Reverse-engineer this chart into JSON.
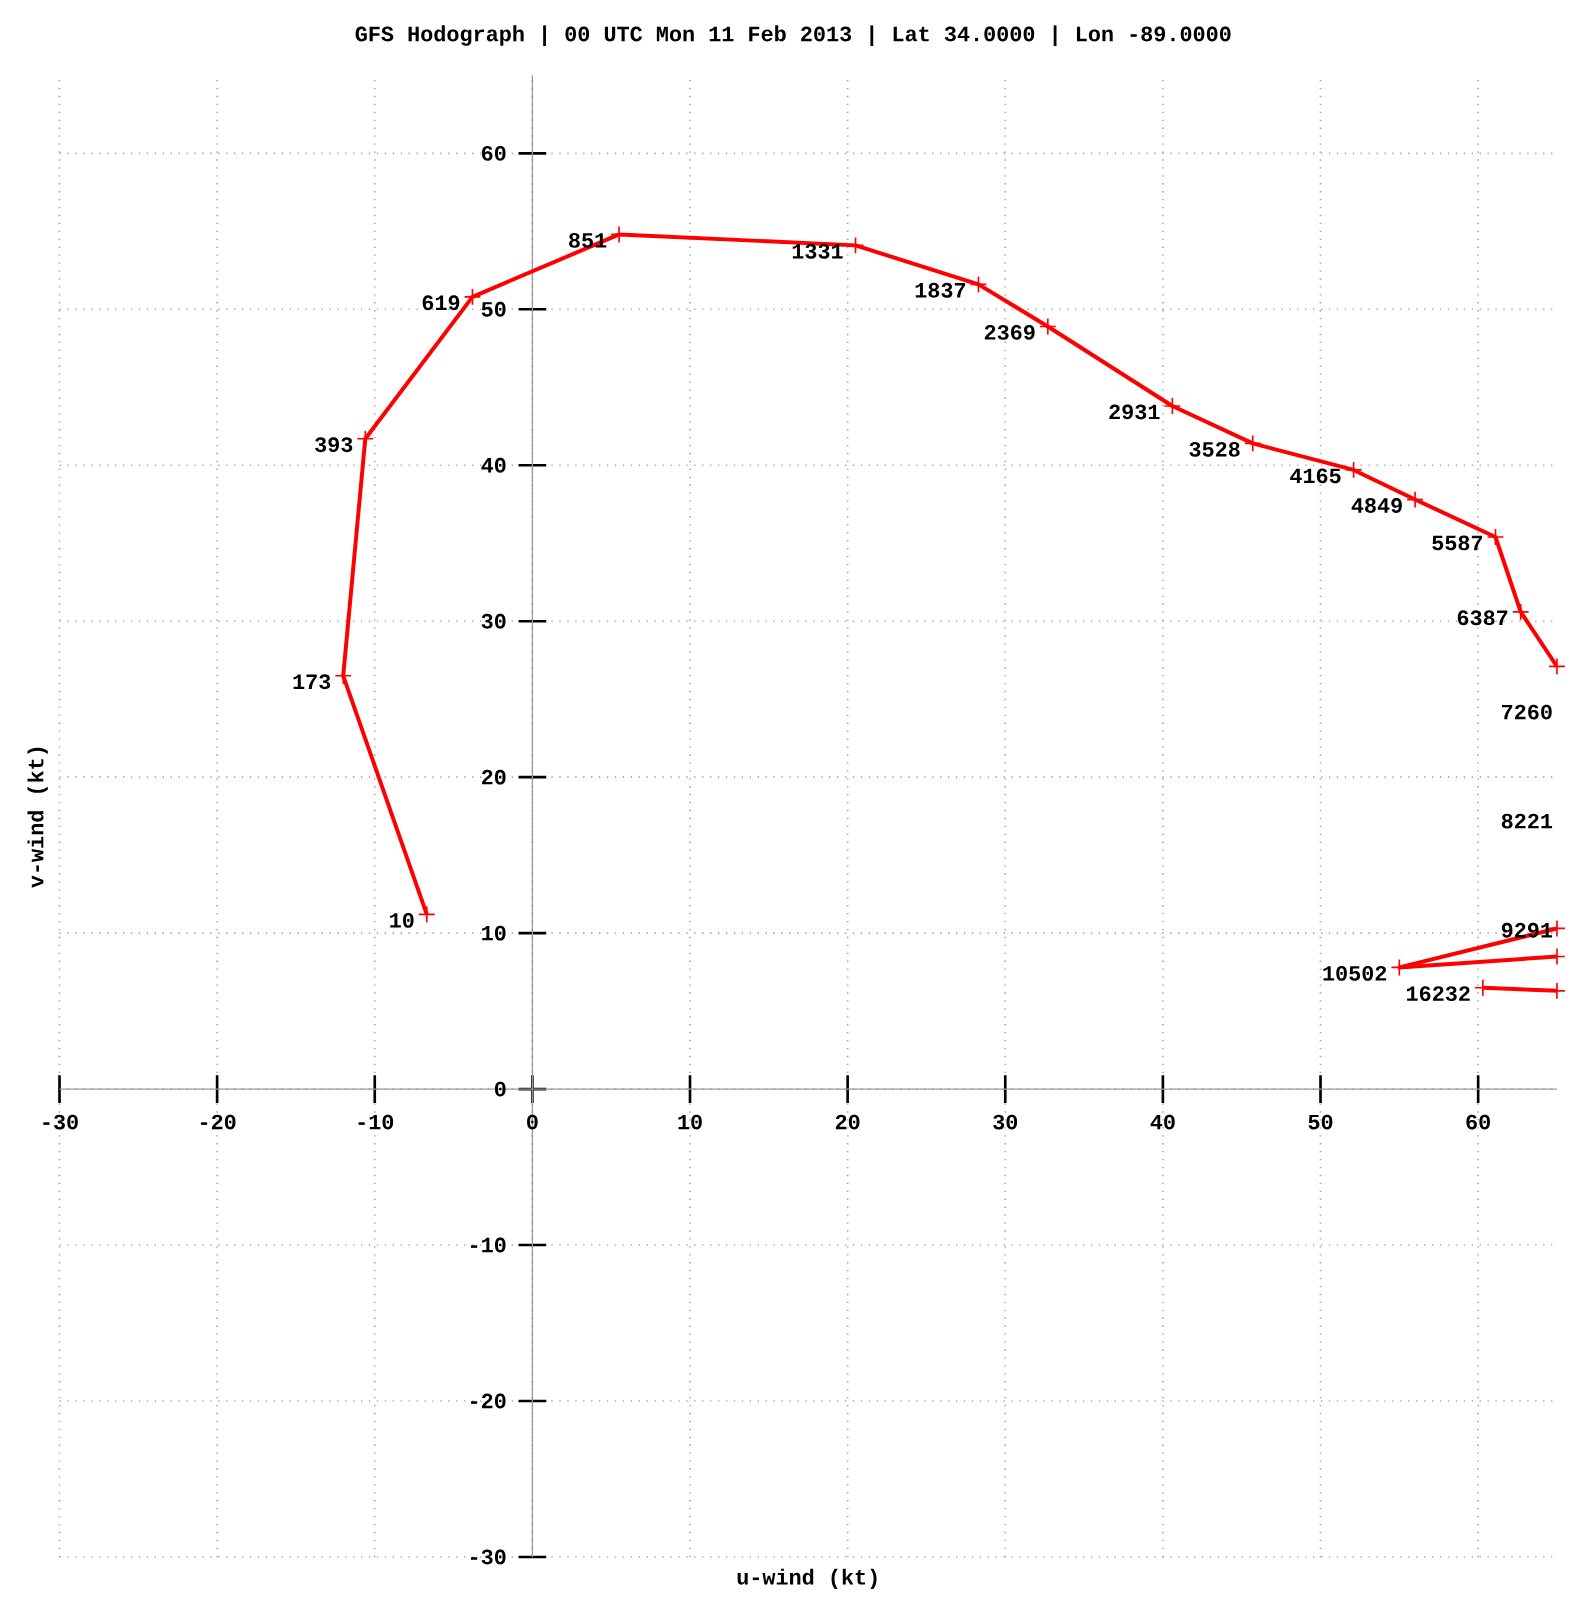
{
  "chart_data": {
    "type": "line",
    "title": "GFS Hodograph | 00 UTC Mon 11 Feb 2013 | Lat 34.0000 | Lon -89.0000",
    "xlabel": "u-wind (kt)",
    "ylabel": "v-wind (kt)",
    "xlim": [
      -30,
      65
    ],
    "ylim": [
      -30,
      65
    ],
    "xticks": [
      -30,
      -20,
      -10,
      0,
      10,
      20,
      30,
      40,
      50,
      60
    ],
    "yticks": [
      -30,
      -20,
      -10,
      0,
      10,
      20,
      30,
      40,
      50,
      60
    ],
    "grid": true,
    "marker": "cross",
    "line_style": "solid",
    "series": [
      {
        "color": "#ff0000",
        "x": [
          -6.7,
          -12.0,
          -10.6,
          -3.8,
          5.5,
          20.5,
          28.3,
          32.7,
          40.6,
          45.7,
          52.1,
          56.0,
          61.1,
          62.7,
          65
        ],
        "values": [
          11.2,
          26.5,
          41.7,
          50.8,
          54.8,
          54.1,
          51.6,
          48.9,
          43.8,
          41.4,
          39.7,
          37.8,
          35.4,
          30.6,
          27.1
        ]
      },
      {
        "color": "#ff0000",
        "x": [
          65,
          55.0,
          65
        ],
        "values": [
          10.3,
          7.8,
          8.5
        ]
      },
      {
        "color": "#ff0000",
        "x": [
          60.3,
          65
        ],
        "values": [
          6.5,
          6.3
        ]
      }
    ],
    "annotations": [
      {
        "text": "10",
        "x": -6.7,
        "y": 11.2
      },
      {
        "text": "173",
        "x": -12.0,
        "y": 26.5
      },
      {
        "text": "393",
        "x": -10.6,
        "y": 41.7
      },
      {
        "text": "619",
        "x": -3.8,
        "y": 50.8
      },
      {
        "text": "851",
        "x": 5.5,
        "y": 54.8
      },
      {
        "text": "1331",
        "x": 20.5,
        "y": 54.1
      },
      {
        "text": "1837",
        "x": 28.3,
        "y": 51.6
      },
      {
        "text": "2369",
        "x": 32.7,
        "y": 48.9
      },
      {
        "text": "2931",
        "x": 40.6,
        "y": 43.8
      },
      {
        "text": "3528",
        "x": 45.7,
        "y": 41.4
      },
      {
        "text": "4165",
        "x": 52.1,
        "y": 39.7
      },
      {
        "text": "4849",
        "x": 56.0,
        "y": 37.8
      },
      {
        "text": "5587",
        "x": 61.1,
        "y": 35.4
      },
      {
        "text": "6387",
        "x": 62.7,
        "y": 30.6
      },
      "7260",
      "8221",
      "9291",
      {
        "text": "10502",
        "x": 55.0,
        "y": 7.8
      },
      {
        "text": "16232",
        "x": 60.3,
        "y": 6.5
      }
    ]
  }
}
